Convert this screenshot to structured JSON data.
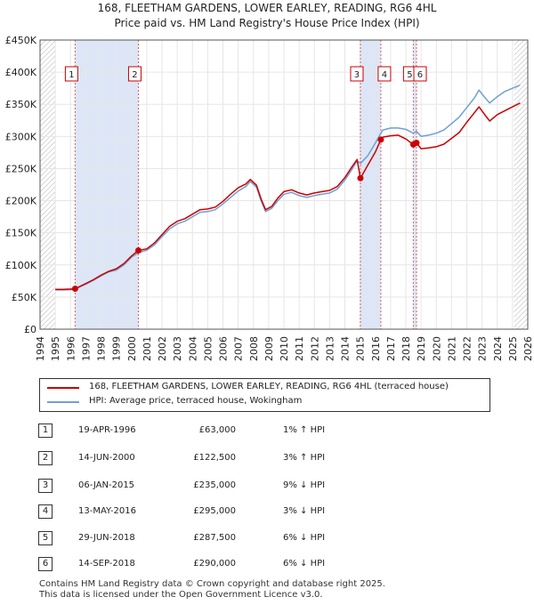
{
  "title_line1": "168, FLEETHAM GARDENS, LOWER EARLEY, READING, RG6 4HL",
  "title_line2": "Price paid vs. HM Land Registry's House Price Index (HPI)",
  "colors": {
    "price_line": "#cc0000",
    "hpi_line": "#6f9fd8",
    "shade": "#dde6f6",
    "marker": "#cc0000"
  },
  "legend": {
    "price_label": "168, FLEETHAM GARDENS, LOWER EARLEY, READING, RG6 4HL (terraced house)",
    "hpi_label": "HPI: Average price, terraced house, Wokingham"
  },
  "transactions": [
    {
      "num": "1",
      "date": "19-APR-1996",
      "price": "£63,000",
      "hpi": "1% ↑ HPI"
    },
    {
      "num": "2",
      "date": "14-JUN-2000",
      "price": "£122,500",
      "hpi": "3% ↑ HPI"
    },
    {
      "num": "3",
      "date": "06-JAN-2015",
      "price": "£235,000",
      "hpi": "9% ↓ HPI"
    },
    {
      "num": "4",
      "date": "13-MAY-2016",
      "price": "£295,000",
      "hpi": "3% ↓ HPI"
    },
    {
      "num": "5",
      "date": "29-JUN-2018",
      "price": "£287,500",
      "hpi": "6% ↓ HPI"
    },
    {
      "num": "6",
      "date": "14-SEP-2018",
      "price": "£290,000",
      "hpi": "6% ↓ HPI"
    }
  ],
  "footer_line1": "Contains HM Land Registry data © Crown copyright and database right 2025.",
  "footer_line2": "This data is licensed under the Open Government Licence v3.0.",
  "chart_data": {
    "type": "line",
    "xlim": [
      1994,
      2026
    ],
    "ylim": [
      0,
      450000
    ],
    "y_ticks": [
      0,
      50000,
      100000,
      150000,
      200000,
      250000,
      300000,
      350000,
      400000,
      450000
    ],
    "y_tick_labels": [
      "£0",
      "£50K",
      "£100K",
      "£150K",
      "£200K",
      "£250K",
      "£300K",
      "£350K",
      "£400K",
      "£450K"
    ],
    "x_ticks": [
      1994,
      1995,
      1996,
      1997,
      1998,
      1999,
      2000,
      2001,
      2002,
      2003,
      2004,
      2005,
      2006,
      2007,
      2008,
      2009,
      2010,
      2011,
      2012,
      2013,
      2014,
      2015,
      2016,
      2017,
      2018,
      2019,
      2020,
      2021,
      2022,
      2023,
      2024,
      2025,
      2026
    ],
    "x_tick_labels": [
      "1994",
      "1995",
      "1996",
      "1997",
      "1998",
      "1999",
      "2000",
      "2001",
      "2002",
      "2003",
      "2004",
      "2005",
      "2006",
      "2007",
      "2008",
      "2009",
      "2010",
      "2011",
      "2012",
      "2013",
      "2014",
      "2015",
      "2016",
      "2017",
      "2018",
      "2019",
      "2020",
      "2021",
      "2022",
      "2023",
      "2024",
      "2025",
      "2026"
    ],
    "data_start": 1995.0,
    "data_end": 2025.6,
    "hatch_from": 2025.1,
    "shaded_ranges": [
      [
        1996.3,
        2000.45
      ],
      [
        2015.02,
        2016.36
      ],
      [
        2018.49,
        2018.7
      ]
    ],
    "sales": [
      {
        "label": "1",
        "x": 1996.3,
        "y": 63000
      },
      {
        "label": "2",
        "x": 2000.45,
        "y": 122500
      },
      {
        "label": "3",
        "x": 2015.02,
        "y": 235000
      },
      {
        "label": "4",
        "x": 2016.36,
        "y": 295000
      },
      {
        "label": "5",
        "x": 2018.49,
        "y": 287500
      },
      {
        "label": "6",
        "x": 2018.7,
        "y": 290000
      }
    ],
    "series": [
      {
        "name": "HPI: Average price, terraced house, Wokingham",
        "x": [
          1995.0,
          1995.5,
          1996.0,
          1996.3,
          1997.0,
          1997.5,
          1998.0,
          1998.5,
          1999.0,
          1999.5,
          2000.0,
          2000.45,
          2001.0,
          2001.5,
          2002.0,
          2002.5,
          2003.0,
          2003.5,
          2004.0,
          2004.5,
          2005.0,
          2005.5,
          2006.0,
          2006.5,
          2007.0,
          2007.5,
          2007.8,
          2008.2,
          2008.5,
          2008.8,
          2009.2,
          2009.6,
          2010.0,
          2010.5,
          2011.0,
          2011.5,
          2012.0,
          2012.5,
          2013.0,
          2013.5,
          2014.0,
          2014.5,
          2014.8,
          2015.02,
          2015.5,
          2016.0,
          2016.36,
          2016.5,
          2017.0,
          2017.5,
          2018.0,
          2018.49,
          2018.7,
          2019.0,
          2019.5,
          2020.0,
          2020.5,
          2021.0,
          2021.5,
          2022.0,
          2022.5,
          2022.8,
          2023.2,
          2023.5,
          2024.0,
          2024.5,
          2025.0,
          2025.5
        ],
        "y": [
          61000,
          61000,
          61500,
          62400,
          70000,
          76000,
          83000,
          89000,
          92000,
          100000,
          112000,
          119000,
          123000,
          131000,
          144000,
          156000,
          164000,
          168000,
          175000,
          182000,
          183000,
          186000,
          195000,
          205000,
          215000,
          222000,
          230000,
          221000,
          200000,
          183000,
          188000,
          200000,
          210000,
          213000,
          208000,
          205000,
          208000,
          210000,
          212000,
          218000,
          232000,
          250000,
          262000,
          258000,
          270000,
          290000,
          305000,
          310000,
          313000,
          313000,
          311000,
          305000,
          308000,
          300000,
          302000,
          305000,
          310000,
          320000,
          330000,
          345000,
          360000,
          372000,
          360000,
          352000,
          362000,
          370000,
          375000,
          380000
        ]
      },
      {
        "name": "168, FLEETHAM GARDENS, LOWER EARLEY, READING, RG6 4HL (terraced house)",
        "x": [
          1995.0,
          1995.5,
          1996.0,
          1996.3,
          1997.0,
          1997.5,
          1998.0,
          1998.5,
          1999.0,
          1999.5,
          2000.0,
          2000.45,
          2001.0,
          2001.5,
          2002.0,
          2002.5,
          2003.0,
          2003.5,
          2004.0,
          2004.5,
          2005.0,
          2005.5,
          2006.0,
          2006.5,
          2007.0,
          2007.5,
          2007.8,
          2008.2,
          2008.5,
          2008.8,
          2009.2,
          2009.6,
          2010.0,
          2010.5,
          2011.0,
          2011.5,
          2012.0,
          2012.5,
          2013.0,
          2013.5,
          2014.0,
          2014.5,
          2014.8,
          2015.02,
          2015.5,
          2016.0,
          2016.36,
          2016.5,
          2017.0,
          2017.5,
          2018.0,
          2018.49,
          2018.7,
          2019.0,
          2019.5,
          2020.0,
          2020.5,
          2021.0,
          2021.5,
          2022.0,
          2022.5,
          2022.8,
          2023.2,
          2023.5,
          2024.0,
          2024.5,
          2025.0,
          2025.5
        ],
        "y": [
          62000,
          62000,
          62500,
          63000,
          71000,
          77000,
          84000,
          90000,
          94000,
          102000,
          114000,
          122500,
          125000,
          134000,
          147000,
          160000,
          168000,
          172000,
          179000,
          186000,
          187000,
          190000,
          199000,
          210000,
          220000,
          226000,
          233000,
          224000,
          203000,
          186000,
          191000,
          204000,
          214000,
          217000,
          212000,
          209000,
          212000,
          214000,
          216000,
          222000,
          236000,
          254000,
          264000,
          235000,
          255000,
          276000,
          295000,
          299000,
          301000,
          302000,
          296000,
          287500,
          290000,
          281000,
          282000,
          284000,
          288000,
          297000,
          306000,
          322000,
          337000,
          346000,
          333000,
          324000,
          334000,
          340000,
          346000,
          352000
        ]
      }
    ]
  }
}
